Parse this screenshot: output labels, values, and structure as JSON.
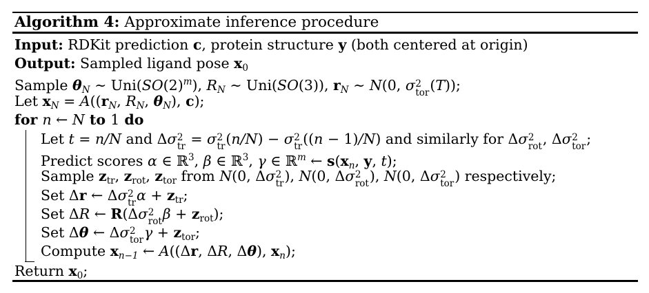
{
  "colors": {
    "background": "#ffffff",
    "text": "#000000",
    "rule": "#000000"
  },
  "header": {
    "label": "Algorithm 4:",
    "title": "Approximate inference procedure"
  },
  "algorithm": {
    "pre_lines": [
      {
        "name": "input-line",
        "segments": [
          {
            "t": "Input:",
            "s": "b"
          },
          {
            "t": " RDKit prediction ",
            "s": "n"
          },
          {
            "t": "c",
            "s": "b"
          },
          {
            "t": ", protein structure ",
            "s": "n"
          },
          {
            "t": "y",
            "s": "b"
          },
          {
            "t": " (both centered at origin)",
            "s": "n"
          }
        ]
      },
      {
        "name": "output-line",
        "segments": [
          {
            "t": "Output:",
            "s": "b"
          },
          {
            "t": " Sampled ligand pose ",
            "s": "n"
          },
          {
            "t": "x",
            "s": "b"
          },
          {
            "t": "0",
            "s": "n",
            "v": "sub"
          }
        ]
      },
      {
        "name": "sample-priors-line",
        "segments": [
          {
            "t": "Sample ",
            "s": "n"
          },
          {
            "t": "θ",
            "s": "bi"
          },
          {
            "t": "N",
            "s": "i",
            "v": "sub"
          },
          {
            "t": " ∼ Uni(",
            "s": "n"
          },
          {
            "t": "SO",
            "s": "i"
          },
          {
            "t": "(2)",
            "s": "n"
          },
          {
            "t": "m",
            "s": "i",
            "v": "sup"
          },
          {
            "t": "), ",
            "s": "n"
          },
          {
            "t": "R",
            "s": "i"
          },
          {
            "t": "N",
            "s": "i",
            "v": "sub"
          },
          {
            "t": " ∼ Uni(",
            "s": "n"
          },
          {
            "t": "SO",
            "s": "i"
          },
          {
            "t": "(3)), ",
            "s": "n"
          },
          {
            "t": "r",
            "s": "b"
          },
          {
            "t": "N",
            "s": "i",
            "v": "sub"
          },
          {
            "t": " ∼ ",
            "s": "n"
          },
          {
            "t": "N",
            "s": "cal"
          },
          {
            "t": "(0, ",
            "s": "n"
          },
          {
            "base": "σ",
            "base_style": "i",
            "sup": "2",
            "sub": "tor"
          },
          {
            "t": "(",
            "s": "n"
          },
          {
            "t": "T",
            "s": "i"
          },
          {
            "t": "));",
            "s": "n"
          }
        ]
      },
      {
        "name": "assemble-pose-line",
        "segments": [
          {
            "t": "Let ",
            "s": "n"
          },
          {
            "t": "x",
            "s": "b"
          },
          {
            "t": "N",
            "s": "i",
            "v": "sub"
          },
          {
            "t": " = ",
            "s": "n"
          },
          {
            "t": "A",
            "s": "i"
          },
          {
            "t": "((",
            "s": "n"
          },
          {
            "t": "r",
            "s": "b"
          },
          {
            "t": "N",
            "s": "i",
            "v": "sub"
          },
          {
            "t": ", ",
            "s": "n"
          },
          {
            "t": "R",
            "s": "i"
          },
          {
            "t": "N",
            "s": "i",
            "v": "sub"
          },
          {
            "t": ", ",
            "s": "n"
          },
          {
            "t": "θ",
            "s": "bi"
          },
          {
            "t": "N",
            "s": "i",
            "v": "sub"
          },
          {
            "t": "), ",
            "s": "n"
          },
          {
            "t": "c",
            "s": "b"
          },
          {
            "t": ");",
            "s": "n"
          }
        ]
      },
      {
        "name": "for-loop-header",
        "segments": [
          {
            "t": "for ",
            "s": "b"
          },
          {
            "t": "n",
            "s": "i"
          },
          {
            "t": " ← ",
            "s": "n"
          },
          {
            "t": "N",
            "s": "i"
          },
          {
            "t": " to ",
            "s": "b"
          },
          {
            "t": "1",
            "s": "n"
          },
          {
            "t": " do",
            "s": "b"
          }
        ]
      }
    ],
    "loop_lines": [
      {
        "name": "loop-line-sigma-deltas",
        "segments": [
          {
            "t": "Let ",
            "s": "n"
          },
          {
            "t": "t",
            "s": "i"
          },
          {
            "t": " = ",
            "s": "n"
          },
          {
            "t": "n/N",
            "s": "i"
          },
          {
            "t": " and Δ",
            "s": "n"
          },
          {
            "base": "σ",
            "base_style": "i",
            "sup": "2",
            "sub": "tr"
          },
          {
            "t": " = ",
            "s": "n"
          },
          {
            "base": "σ",
            "base_style": "i",
            "sup": "2",
            "sub": "tr"
          },
          {
            "t": "(",
            "s": "n"
          },
          {
            "t": "n/N",
            "s": "i"
          },
          {
            "t": ") − ",
            "s": "n"
          },
          {
            "base": "σ",
            "base_style": "i",
            "sup": "2",
            "sub": "tr"
          },
          {
            "t": "((",
            "s": "n"
          },
          {
            "t": "n",
            "s": "i"
          },
          {
            "t": " − 1)",
            "s": "n"
          },
          {
            "t": "/N",
            "s": "i"
          },
          {
            "t": ") and similarly for Δ",
            "s": "n"
          },
          {
            "base": "σ",
            "base_style": "i",
            "sup": "2",
            "sub": "rot"
          },
          {
            "t": ", Δ",
            "s": "n"
          },
          {
            "base": "σ",
            "base_style": "i",
            "sup": "2",
            "sub": "tor"
          },
          {
            "t": ";",
            "s": "n"
          }
        ]
      },
      {
        "name": "loop-line-predict-scores",
        "segments": [
          {
            "t": "Predict scores ",
            "s": "n"
          },
          {
            "t": "α",
            "s": "i"
          },
          {
            "t": " ∈ ℝ",
            "s": "n"
          },
          {
            "t": "3",
            "s": "n",
            "v": "sup"
          },
          {
            "t": ", ",
            "s": "n"
          },
          {
            "t": "β",
            "s": "i"
          },
          {
            "t": " ∈ ℝ",
            "s": "n"
          },
          {
            "t": "3",
            "s": "n",
            "v": "sup"
          },
          {
            "t": ", ",
            "s": "n"
          },
          {
            "t": "γ",
            "s": "i"
          },
          {
            "t": " ∈ ℝ",
            "s": "n"
          },
          {
            "t": "m",
            "s": "i",
            "v": "sup"
          },
          {
            "t": " ← ",
            "s": "n"
          },
          {
            "t": "s",
            "s": "b"
          },
          {
            "t": "(",
            "s": "n"
          },
          {
            "t": "x",
            "s": "b"
          },
          {
            "t": "n",
            "s": "i",
            "v": "sub"
          },
          {
            "t": ", ",
            "s": "n"
          },
          {
            "t": "y",
            "s": "b"
          },
          {
            "t": ", ",
            "s": "n"
          },
          {
            "t": "t",
            "s": "i"
          },
          {
            "t": ");",
            "s": "n"
          }
        ]
      },
      {
        "name": "loop-line-sample-noise",
        "segments": [
          {
            "t": "Sample ",
            "s": "n"
          },
          {
            "t": "z",
            "s": "b"
          },
          {
            "t": "tr",
            "s": "n",
            "v": "sub"
          },
          {
            "t": ", ",
            "s": "n"
          },
          {
            "t": "z",
            "s": "b"
          },
          {
            "t": "rot",
            "s": "n",
            "v": "sub"
          },
          {
            "t": ", ",
            "s": "n"
          },
          {
            "t": "z",
            "s": "b"
          },
          {
            "t": "tor",
            "s": "n",
            "v": "sub"
          },
          {
            "t": " from ",
            "s": "n"
          },
          {
            "t": "N",
            "s": "cal"
          },
          {
            "t": "(0, Δ",
            "s": "n"
          },
          {
            "base": "σ",
            "base_style": "i",
            "sup": "2",
            "sub": "tr"
          },
          {
            "t": "), ",
            "s": "n"
          },
          {
            "t": "N",
            "s": "cal"
          },
          {
            "t": "(0, Δ",
            "s": "n"
          },
          {
            "base": "σ",
            "base_style": "i",
            "sup": "2",
            "sub": "rot"
          },
          {
            "t": "), ",
            "s": "n"
          },
          {
            "t": "N",
            "s": "cal"
          },
          {
            "t": "(0, Δ",
            "s": "n"
          },
          {
            "base": "σ",
            "base_style": "i",
            "sup": "2",
            "sub": "tor"
          },
          {
            "t": ") respectively;",
            "s": "n"
          }
        ]
      },
      {
        "name": "loop-line-set-translation",
        "segments": [
          {
            "t": "Set Δ",
            "s": "n"
          },
          {
            "t": "r",
            "s": "b"
          },
          {
            "t": " ← Δ",
            "s": "n"
          },
          {
            "base": "σ",
            "base_style": "i",
            "sup": "2",
            "sub": "tr"
          },
          {
            "t": "α",
            "s": "i"
          },
          {
            "t": " + ",
            "s": "n"
          },
          {
            "t": "z",
            "s": "b"
          },
          {
            "t": "tr",
            "s": "n",
            "v": "sub"
          },
          {
            "t": ";",
            "s": "n"
          }
        ]
      },
      {
        "name": "loop-line-set-rotation",
        "segments": [
          {
            "t": "Set Δ",
            "s": "n"
          },
          {
            "t": "R",
            "s": "i"
          },
          {
            "t": " ← ",
            "s": "n"
          },
          {
            "t": "R",
            "s": "b"
          },
          {
            "t": "(Δ",
            "s": "n"
          },
          {
            "base": "σ",
            "base_style": "i",
            "sup": "2",
            "sub": "rot"
          },
          {
            "t": "β",
            "s": "i"
          },
          {
            "t": " + ",
            "s": "n"
          },
          {
            "t": "z",
            "s": "b"
          },
          {
            "t": "rot",
            "s": "n",
            "v": "sub"
          },
          {
            "t": ");",
            "s": "n"
          }
        ]
      },
      {
        "name": "loop-line-set-torsion",
        "segments": [
          {
            "t": "Set Δ",
            "s": "n"
          },
          {
            "t": "θ",
            "s": "bi"
          },
          {
            "t": " ← Δ",
            "s": "n"
          },
          {
            "base": "σ",
            "base_style": "i",
            "sup": "2",
            "sub": "tor"
          },
          {
            "t": "γ",
            "s": "i"
          },
          {
            "t": " + ",
            "s": "n"
          },
          {
            "t": "z",
            "s": "b"
          },
          {
            "t": "tor",
            "s": "n",
            "v": "sub"
          },
          {
            "t": ";",
            "s": "n"
          }
        ]
      },
      {
        "name": "loop-line-compute-pose",
        "segments": [
          {
            "t": "Compute ",
            "s": "n"
          },
          {
            "t": "x",
            "s": "b"
          },
          {
            "t": "n−1",
            "s": "i",
            "v": "sub"
          },
          {
            "t": " ← ",
            "s": "n"
          },
          {
            "t": "A",
            "s": "i"
          },
          {
            "t": "((Δ",
            "s": "n"
          },
          {
            "t": "r",
            "s": "b"
          },
          {
            "t": ", Δ",
            "s": "n"
          },
          {
            "t": "R",
            "s": "i"
          },
          {
            "t": ", Δ",
            "s": "n"
          },
          {
            "t": "θ",
            "s": "bi"
          },
          {
            "t": "), ",
            "s": "n"
          },
          {
            "t": "x",
            "s": "b"
          },
          {
            "t": "n",
            "s": "i",
            "v": "sub"
          },
          {
            "t": ");",
            "s": "n"
          }
        ]
      }
    ],
    "post_lines": [
      {
        "name": "return-line",
        "segments": [
          {
            "t": "Return ",
            "s": "n"
          },
          {
            "t": "x",
            "s": "b"
          },
          {
            "t": "0",
            "s": "n",
            "v": "sub"
          },
          {
            "t": ";",
            "s": "n"
          }
        ]
      }
    ]
  }
}
